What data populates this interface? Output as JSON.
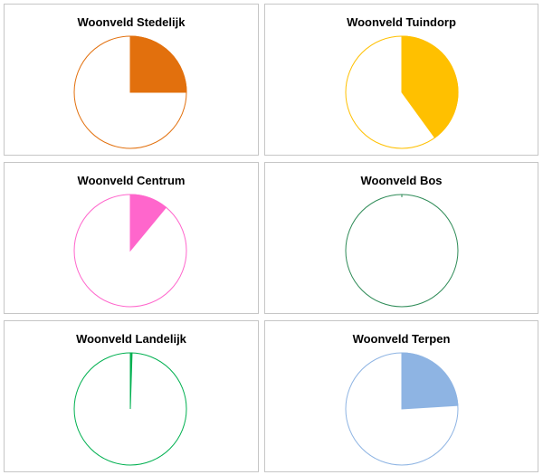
{
  "chart_data": [
    {
      "type": "pie",
      "title": "Woonveld Stedelijk",
      "values": [
        25,
        75
      ],
      "color": "#e2700d"
    },
    {
      "type": "pie",
      "title": "Woonveld Tuindorp",
      "values": [
        40,
        60
      ],
      "color": "#ffc000"
    },
    {
      "type": "pie",
      "title": "Woonveld Centrum",
      "values": [
        11,
        89
      ],
      "color": "#ff66cc"
    },
    {
      "type": "pie",
      "title": "Woonveld Bos",
      "values": [
        0,
        100
      ],
      "color": "#2e8b57"
    },
    {
      "type": "pie",
      "title": "Woonveld Landelijk",
      "values": [
        0.5,
        99.5
      ],
      "color": "#00b050"
    },
    {
      "type": "pie",
      "title": "Woonveld Terpen",
      "values": [
        24,
        76
      ],
      "color": "#8eb4e3"
    }
  ]
}
